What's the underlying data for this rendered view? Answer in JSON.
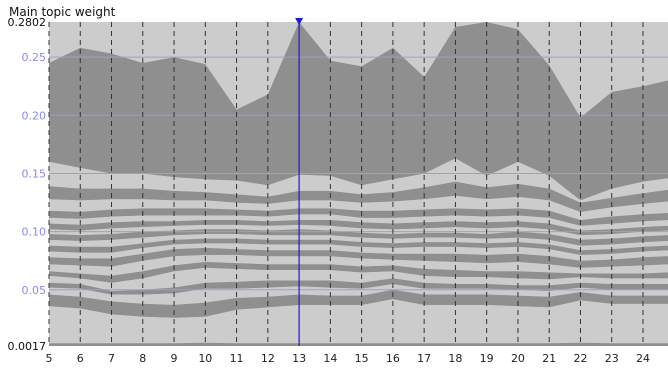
{
  "chart_data": {
    "type": "area",
    "title": "Main topic weight",
    "ylim": [
      0.0017,
      0.2802
    ],
    "ytick_labels": [
      "0.2802",
      "0.25",
      "0.20",
      "0.15",
      "0.10",
      "0.05",
      "0.0017"
    ],
    "ytick_values": [
      0.2802,
      0.25,
      0.2,
      0.15,
      0.1,
      0.05,
      0.0017
    ],
    "x": [
      5,
      6,
      7,
      8,
      9,
      10,
      11,
      12,
      13,
      14,
      15,
      16,
      17,
      18,
      19,
      20,
      21,
      22,
      23,
      24
    ],
    "x_right_edge": 24.8,
    "xtick_labels": [
      "5",
      "6",
      "7",
      "8",
      "9",
      "10",
      "11",
      "12",
      "13",
      "14",
      "15",
      "16",
      "17",
      "18",
      "19",
      "20",
      "21",
      "22",
      "23",
      "24"
    ],
    "marker_x": 13,
    "grid": true,
    "layer_colors": [
      "#8f8f8f",
      "#cccccc"
    ],
    "background_color": "#a3a3a3",
    "grid_color": "#9a9af0",
    "marker_color": "#1a1ad6",
    "boundaries": [
      [
        0.0017,
        0.0017,
        0.0017,
        0.0017,
        0.0017,
        0.0017,
        0.0017,
        0.0017,
        0.0017,
        0.0017,
        0.0017,
        0.0017,
        0.0017,
        0.0017,
        0.0017,
        0.0017,
        0.0017,
        0.0017,
        0.0017,
        0.0017,
        0.0017
      ],
      [
        0.004,
        0.004,
        0.004,
        0.004,
        0.004,
        0.0045,
        0.004,
        0.004,
        0.004,
        0.004,
        0.004,
        0.004,
        0.004,
        0.004,
        0.004,
        0.004,
        0.004,
        0.0045,
        0.004,
        0.004,
        0.004
      ],
      [
        0.036,
        0.034,
        0.029,
        0.027,
        0.026,
        0.027,
        0.033,
        0.035,
        0.037,
        0.037,
        0.037,
        0.042,
        0.037,
        0.037,
        0.037,
        0.036,
        0.035,
        0.041,
        0.038,
        0.038,
        0.038
      ],
      [
        0.046,
        0.044,
        0.04,
        0.038,
        0.037,
        0.039,
        0.043,
        0.044,
        0.046,
        0.045,
        0.045,
        0.05,
        0.046,
        0.046,
        0.046,
        0.045,
        0.044,
        0.048,
        0.045,
        0.045,
        0.045
      ],
      [
        0.052,
        0.051,
        0.046,
        0.046,
        0.047,
        0.051,
        0.051,
        0.052,
        0.053,
        0.052,
        0.051,
        0.055,
        0.051,
        0.051,
        0.051,
        0.05,
        0.049,
        0.052,
        0.05,
        0.05,
        0.05
      ],
      [
        0.056,
        0.055,
        0.049,
        0.05,
        0.052,
        0.056,
        0.057,
        0.058,
        0.058,
        0.058,
        0.056,
        0.06,
        0.056,
        0.055,
        0.055,
        0.054,
        0.054,
        0.056,
        0.055,
        0.055,
        0.055
      ],
      [
        0.062,
        0.06,
        0.056,
        0.06,
        0.066,
        0.069,
        0.068,
        0.067,
        0.067,
        0.067,
        0.065,
        0.066,
        0.062,
        0.061,
        0.061,
        0.06,
        0.059,
        0.061,
        0.06,
        0.06,
        0.06
      ],
      [
        0.066,
        0.064,
        0.062,
        0.066,
        0.071,
        0.074,
        0.073,
        0.072,
        0.072,
        0.072,
        0.07,
        0.071,
        0.068,
        0.067,
        0.066,
        0.066,
        0.065,
        0.064,
        0.064,
        0.064,
        0.065
      ],
      [
        0.072,
        0.071,
        0.07,
        0.075,
        0.079,
        0.08,
        0.08,
        0.079,
        0.079,
        0.079,
        0.077,
        0.076,
        0.075,
        0.074,
        0.073,
        0.074,
        0.072,
        0.069,
        0.07,
        0.071,
        0.072
      ],
      [
        0.078,
        0.077,
        0.077,
        0.081,
        0.085,
        0.086,
        0.085,
        0.084,
        0.084,
        0.084,
        0.082,
        0.081,
        0.081,
        0.081,
        0.08,
        0.081,
        0.079,
        0.075,
        0.076,
        0.078,
        0.079
      ],
      [
        0.083,
        0.082,
        0.082,
        0.086,
        0.089,
        0.09,
        0.09,
        0.089,
        0.089,
        0.089,
        0.087,
        0.086,
        0.087,
        0.087,
        0.086,
        0.087,
        0.085,
        0.08,
        0.081,
        0.083,
        0.084
      ],
      [
        0.088,
        0.087,
        0.087,
        0.09,
        0.093,
        0.094,
        0.094,
        0.093,
        0.093,
        0.093,
        0.091,
        0.09,
        0.091,
        0.091,
        0.09,
        0.091,
        0.089,
        0.084,
        0.085,
        0.087,
        0.088
      ],
      [
        0.093,
        0.092,
        0.093,
        0.095,
        0.097,
        0.098,
        0.098,
        0.097,
        0.097,
        0.097,
        0.095,
        0.094,
        0.095,
        0.095,
        0.094,
        0.095,
        0.093,
        0.088,
        0.089,
        0.091,
        0.092
      ],
      [
        0.098,
        0.097,
        0.098,
        0.1,
        0.101,
        0.102,
        0.102,
        0.101,
        0.102,
        0.101,
        0.099,
        0.098,
        0.099,
        0.099,
        0.098,
        0.1,
        0.098,
        0.093,
        0.094,
        0.096,
        0.097
      ],
      [
        0.102,
        0.101,
        0.103,
        0.104,
        0.105,
        0.106,
        0.106,
        0.105,
        0.106,
        0.105,
        0.103,
        0.102,
        0.103,
        0.104,
        0.103,
        0.104,
        0.102,
        0.097,
        0.098,
        0.1,
        0.101
      ],
      [
        0.107,
        0.106,
        0.108,
        0.109,
        0.109,
        0.11,
        0.11,
        0.109,
        0.11,
        0.11,
        0.108,
        0.107,
        0.108,
        0.109,
        0.108,
        0.109,
        0.107,
        0.101,
        0.102,
        0.104,
        0.105
      ],
      [
        0.112,
        0.111,
        0.113,
        0.114,
        0.114,
        0.114,
        0.114,
        0.113,
        0.115,
        0.115,
        0.112,
        0.112,
        0.113,
        0.114,
        0.113,
        0.114,
        0.112,
        0.105,
        0.107,
        0.109,
        0.11
      ],
      [
        0.118,
        0.117,
        0.119,
        0.12,
        0.12,
        0.12,
        0.119,
        0.118,
        0.12,
        0.12,
        0.118,
        0.118,
        0.119,
        0.12,
        0.119,
        0.12,
        0.118,
        0.11,
        0.113,
        0.115,
        0.116
      ],
      [
        0.128,
        0.127,
        0.128,
        0.128,
        0.127,
        0.127,
        0.125,
        0.124,
        0.127,
        0.127,
        0.125,
        0.126,
        0.128,
        0.131,
        0.128,
        0.13,
        0.127,
        0.117,
        0.121,
        0.124,
        0.126
      ],
      [
        0.139,
        0.137,
        0.137,
        0.137,
        0.135,
        0.134,
        0.132,
        0.13,
        0.135,
        0.135,
        0.132,
        0.134,
        0.138,
        0.143,
        0.138,
        0.141,
        0.137,
        0.125,
        0.129,
        0.133,
        0.136
      ],
      [
        0.16,
        0.155,
        0.15,
        0.15,
        0.147,
        0.145,
        0.144,
        0.14,
        0.149,
        0.148,
        0.14,
        0.145,
        0.15,
        0.163,
        0.148,
        0.16,
        0.148,
        0.127,
        0.137,
        0.143,
        0.146
      ],
      [
        0.245,
        0.258,
        0.253,
        0.245,
        0.25,
        0.244,
        0.205,
        0.218,
        0.2802,
        0.247,
        0.242,
        0.258,
        0.233,
        0.276,
        0.2802,
        0.274,
        0.243,
        0.198,
        0.22,
        0.225,
        0.23
      ],
      [
        0.2802,
        0.2802,
        0.2802,
        0.2802,
        0.2802,
        0.2802,
        0.2802,
        0.2802,
        0.2802,
        0.2802,
        0.2802,
        0.2802,
        0.2802,
        0.2802,
        0.2802,
        0.2802,
        0.2802,
        0.2802,
        0.2802,
        0.2802,
        0.2802
      ]
    ]
  }
}
